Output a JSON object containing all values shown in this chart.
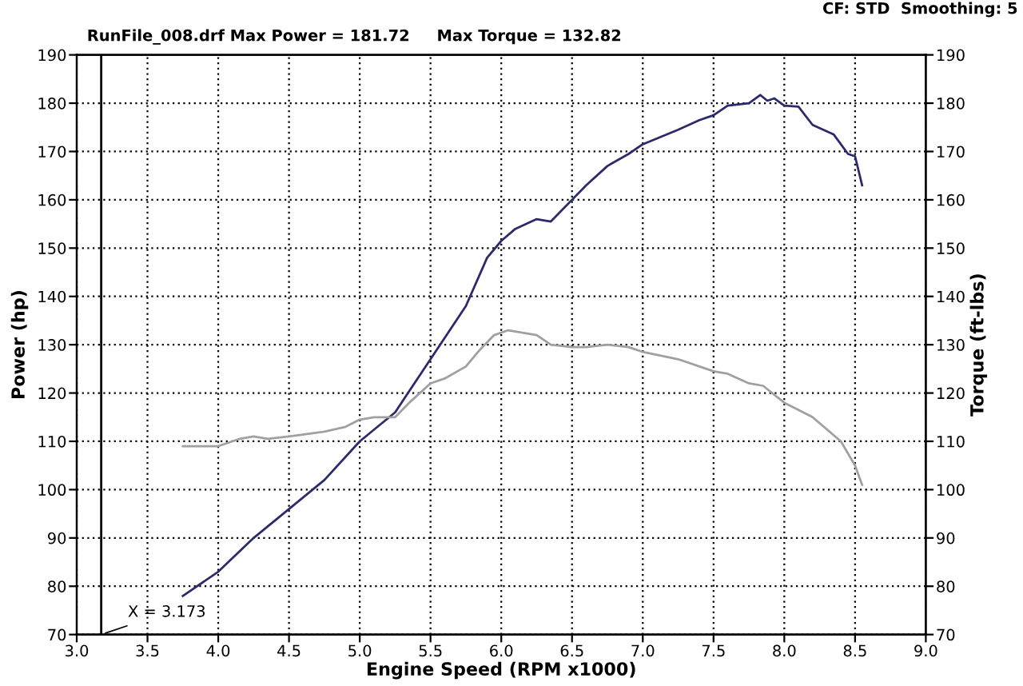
{
  "chart_data": {
    "type": "line",
    "xlabel": "Engine Speed (RPM x1000)",
    "ylabel": "Power (hp)",
    "y2label": "Torque (ft-lbs)",
    "annotations": [
      "RunFile_008.drf Max Power = 181.72     Max Torque = 132.82",
      "CF: STD  Smoothing: 5"
    ],
    "series": [
      {
        "color": "#2b2b6b",
        "x": [
          3.75,
          4.0,
          4.25,
          4.5,
          4.75,
          5.0,
          5.25,
          5.5,
          5.75,
          5.9,
          6.0,
          6.1,
          6.25,
          6.35,
          6.5,
          6.6,
          6.75,
          6.9,
          7.0,
          7.25,
          7.4,
          7.5,
          7.6,
          7.75,
          7.83,
          7.88,
          7.93,
          8.0,
          8.1,
          8.2,
          8.35,
          8.45,
          8.5,
          8.55
        ],
        "values": [
          78,
          83,
          90,
          96,
          102,
          110,
          116,
          127,
          138,
          148,
          151.5,
          154,
          156,
          155.5,
          160,
          163,
          167,
          169.5,
          171.5,
          174.5,
          176.5,
          177.5,
          179.5,
          180,
          181.7,
          180.5,
          181,
          179.5,
          179.3,
          175.5,
          173.5,
          169.5,
          169,
          163
        ]
      },
      {
        "color": "#a0a0a0",
        "x": [
          3.75,
          4.0,
          4.15,
          4.25,
          4.35,
          4.5,
          4.75,
          4.9,
          5.0,
          5.1,
          5.25,
          5.35,
          5.5,
          5.6,
          5.75,
          5.85,
          5.95,
          6.05,
          6.15,
          6.25,
          6.35,
          6.5,
          6.6,
          6.75,
          6.9,
          7.0,
          7.25,
          7.5,
          7.6,
          7.75,
          7.85,
          8.0,
          8.2,
          8.4,
          8.5,
          8.55
        ],
        "values": [
          109,
          109,
          110.5,
          111,
          110.5,
          111,
          112,
          113,
          114.5,
          115,
          115,
          118,
          122,
          123,
          125.5,
          129,
          132,
          133,
          132.5,
          132,
          130,
          129.5,
          129.5,
          130,
          129.5,
          128.5,
          127,
          124.5,
          124,
          122,
          121.5,
          118,
          115,
          110,
          105,
          101
        ]
      }
    ],
    "ref_lines": [
      {
        "axis": "x",
        "value": 3.173,
        "label": "X = 3.173",
        "color": "#000000"
      }
    ],
    "xlim": [
      3,
      9
    ],
    "xticks": [
      {
        "value": 3,
        "label": "3.0"
      },
      3.5,
      {
        "value": 4,
        "label": "4.0"
      },
      4.5,
      {
        "value": 5,
        "label": "5.0"
      },
      5.5,
      {
        "value": 6,
        "label": "6.0"
      },
      6.5,
      {
        "value": 7,
        "label": "7.0"
      },
      7.5,
      {
        "value": 8,
        "label": "8.0"
      },
      8.5,
      {
        "value": 9,
        "label": "9.0"
      }
    ],
    "ylim": [
      70,
      190
    ],
    "yticks": [
      70,
      80,
      90,
      100,
      110,
      120,
      130,
      140,
      150,
      160,
      170,
      180,
      190
    ],
    "y2lim": [
      70,
      190
    ],
    "y2ticks": [
      70,
      80,
      90,
      100,
      110,
      120,
      130,
      140,
      150,
      160,
      170,
      180,
      190
    ],
    "grid": true,
    "legend": false,
    "marker": "none",
    "line_style": "solid"
  }
}
